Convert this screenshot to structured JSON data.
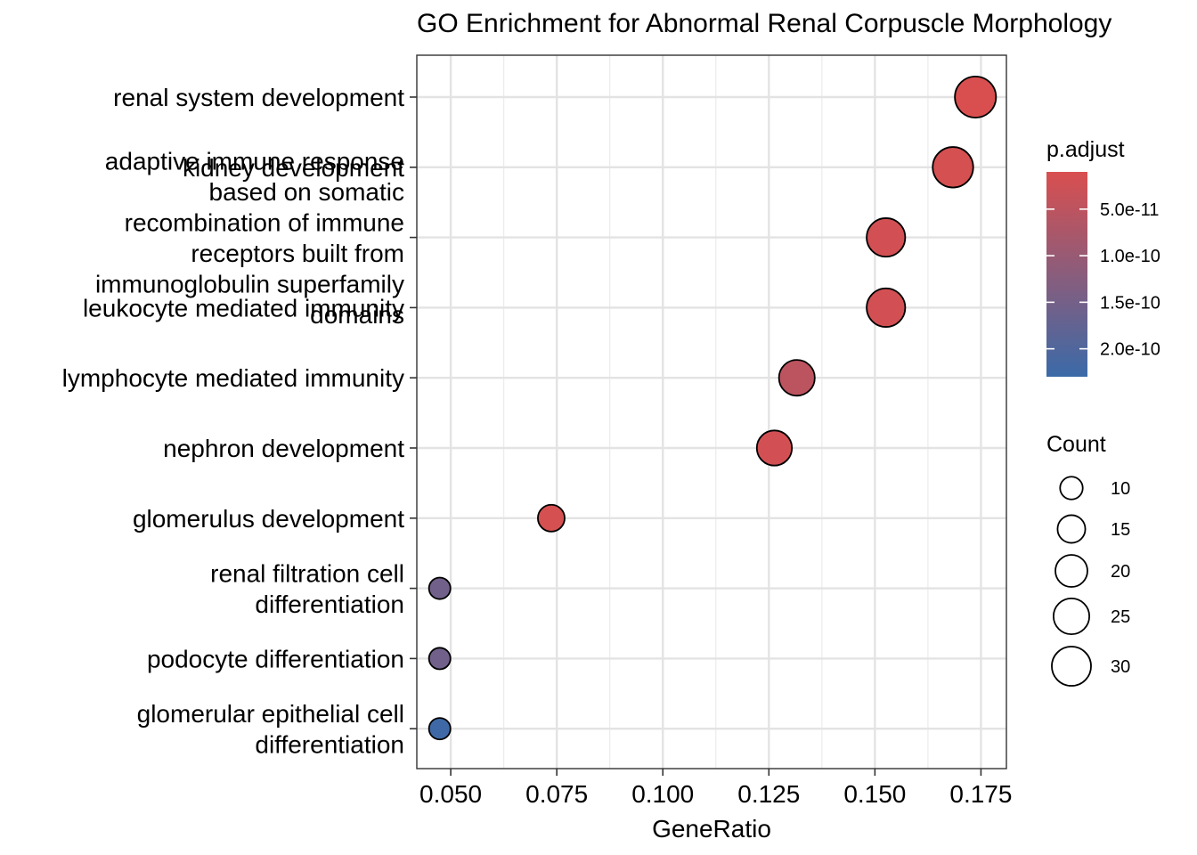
{
  "chart_data": {
    "type": "scatter",
    "title": "GO Enrichment for Abnormal Renal Corpuscle Morphology",
    "xlabel": "GeneRatio",
    "ylabel": "",
    "xlim": [
      0.042,
      0.181
    ],
    "xticks": [
      0.05,
      0.075,
      0.1,
      0.125,
      0.15,
      0.175
    ],
    "xtick_labels": [
      "0.050",
      "0.075",
      "0.100",
      "0.125",
      "0.150",
      "0.175"
    ],
    "categories": [
      {
        "label": "renal system development",
        "lines": [
          "renal system development"
        ]
      },
      {
        "label": "kidney development",
        "lines": [
          "kidney development"
        ]
      },
      {
        "label": "adaptive immune response based on somatic recombination of immune receptors built from immunoglobulin superfamily domains",
        "lines": [
          "adaptive immune response",
          "based on somatic",
          "recombination of immune",
          "receptors built from",
          "immunoglobulin superfamily",
          "domains"
        ]
      },
      {
        "label": "leukocyte mediated immunity",
        "lines": [
          "leukocyte mediated immunity"
        ]
      },
      {
        "label": "lymphocyte mediated immunity",
        "lines": [
          "lymphocyte mediated immunity"
        ]
      },
      {
        "label": "nephron development",
        "lines": [
          "nephron development"
        ]
      },
      {
        "label": "glomerulus development",
        "lines": [
          "glomerulus development"
        ]
      },
      {
        "label": "renal filtration cell differentiation",
        "lines": [
          "renal filtration cell",
          "differentiation"
        ]
      },
      {
        "label": "podocyte differentiation",
        "lines": [
          "podocyte differentiation"
        ]
      },
      {
        "label": "glomerular epithelial cell differentiation",
        "lines": [
          "glomerular epithelial cell",
          "differentiation"
        ]
      }
    ],
    "points": [
      {
        "term": "renal system development",
        "gene_ratio": 0.1737,
        "count": 33,
        "p_adjust": 1e-11
      },
      {
        "term": "kidney development",
        "gene_ratio": 0.1684,
        "count": 32,
        "p_adjust": 1.5e-11
      },
      {
        "term": "adaptive immune response based on somatic recombination of immune receptors built from immunoglobulin superfamily domains",
        "gene_ratio": 0.1526,
        "count": 29,
        "p_adjust": 2e-11
      },
      {
        "term": "leukocyte mediated immunity",
        "gene_ratio": 0.1526,
        "count": 29,
        "p_adjust": 2e-11
      },
      {
        "term": "lymphocyte mediated immunity",
        "gene_ratio": 0.1316,
        "count": 25,
        "p_adjust": 5e-11
      },
      {
        "term": "nephron development",
        "gene_ratio": 0.1263,
        "count": 24,
        "p_adjust": 2e-11
      },
      {
        "term": "glomerulus development",
        "gene_ratio": 0.0737,
        "count": 14,
        "p_adjust": 1.5e-11
      },
      {
        "term": "renal filtration cell differentiation",
        "gene_ratio": 0.0474,
        "count": 9,
        "p_adjust": 1.55e-10
      },
      {
        "term": "podocyte differentiation",
        "gene_ratio": 0.0474,
        "count": 9,
        "p_adjust": 1.55e-10
      },
      {
        "term": "glomerular epithelial cell differentiation",
        "gene_ratio": 0.0474,
        "count": 9,
        "p_adjust": 2.25e-10
      }
    ],
    "color_legend": {
      "title": "p.adjust",
      "range": [
        1e-11,
        2.3e-10
      ],
      "low_color": "#d94f4f",
      "high_color": "#3b6aa8",
      "ticks": [
        5e-11,
        1e-10,
        1.5e-10,
        2e-10
      ],
      "tick_labels": [
        "5.0e-11",
        "1.0e-10",
        "1.5e-10",
        "2.0e-10"
      ]
    },
    "size_legend": {
      "title": "Count",
      "values": [
        10,
        15,
        20,
        25,
        30
      ],
      "labels": [
        "10",
        "15",
        "20",
        "25",
        "30"
      ]
    },
    "grid": true,
    "legend_position": "right"
  }
}
